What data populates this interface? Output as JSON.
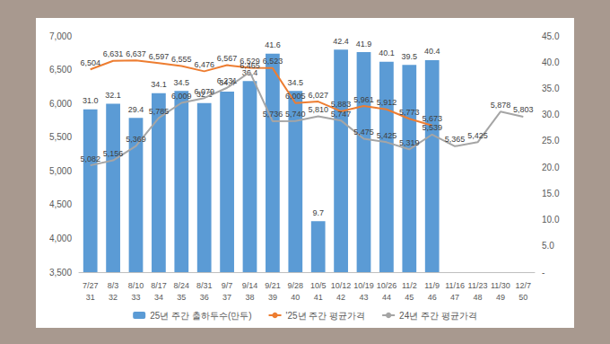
{
  "chart_data": {
    "type": "bar",
    "categories": [
      "7/27\n31",
      "8/3\n32",
      "8/10\n33",
      "8/17\n34",
      "8/24\n35",
      "8/31\n36",
      "9/7\n37",
      "9/14\n38",
      "9/21\n39",
      "9/28\n40",
      "10/5\n41",
      "10/12\n42",
      "10/19\n43",
      "10/26\n44",
      "11/2\n45",
      "11/9\n46",
      "11/16\n47",
      "11/23\n48",
      "11/30\n49",
      "12/7\n50"
    ],
    "series": [
      {
        "name": "25년 주간 출하두수(만두)",
        "type": "bar",
        "axis": "y2",
        "color": "#5b9bd5",
        "values": [
          31.0,
          32.1,
          29.4,
          34.1,
          34.5,
          32.2,
          34.4,
          36.4,
          41.6,
          34.5,
          9.7,
          42.4,
          41.9,
          40.1,
          39.5,
          40.4,
          null,
          null,
          null,
          null
        ],
        "value_labels": [
          "31.0",
          "32.1",
          "29.4",
          "34.1",
          "34.5",
          "32.2",
          "34.4",
          "36.4",
          "41.6",
          "34.5",
          "9.7",
          "42.4",
          "41.9",
          "40.1",
          "39.5",
          "40.4",
          null,
          null,
          null,
          null
        ]
      },
      {
        "name": "'25년 주간 평균가격",
        "type": "line",
        "color": "#ed7d31",
        "marker": "none",
        "line_style": "solid",
        "values": [
          6504,
          6631,
          6637,
          6597,
          6555,
          6476,
          6567,
          6529,
          6523,
          6005,
          6027,
          5883,
          5961,
          5912,
          5773,
          5673,
          null,
          null,
          null,
          null
        ],
        "value_labels": [
          "6,504",
          "6,631",
          "6,637",
          "6,597",
          "6,555",
          "6,476",
          "6,567",
          "6,529",
          "6,523",
          "6,005",
          "6,027",
          "5,883",
          "5,961",
          "5,912",
          "5,773",
          "5,673",
          null,
          null,
          null,
          null
        ]
      },
      {
        "name": "24년 주간 평균가격",
        "type": "line",
        "color": "#a5a5a5",
        "marker": "none",
        "line_style": "solid",
        "values": [
          5082,
          5156,
          5369,
          5785,
          6009,
          6079,
          6231,
          6465,
          5736,
          5740,
          5810,
          5747,
          5475,
          5425,
          5319,
          5539,
          5365,
          5425,
          5878,
          5803
        ],
        "value_labels": [
          "5,082",
          "5,156",
          "5,369",
          "5,785",
          "6,009",
          "6,079",
          "6,231",
          "6,465",
          "5,736",
          "5,740",
          "5,810",
          "5,747",
          "5,475",
          "5,425",
          "5,319",
          "5,539",
          "5,365",
          "5,425",
          "5,878",
          "5,803"
        ]
      }
    ],
    "ylim": [
      3500,
      7000
    ],
    "yticks": [
      {
        "value": 3500,
        "label": "3,500"
      },
      {
        "value": 4000,
        "label": "4,000"
      },
      {
        "value": 4500,
        "label": "4,500"
      },
      {
        "value": 5000,
        "label": "5,000"
      },
      {
        "value": 5500,
        "label": "5,500"
      },
      {
        "value": 6000,
        "label": "6,000"
      },
      {
        "value": 6500,
        "label": "6,500"
      },
      {
        "value": 7000,
        "label": "7,000"
      }
    ],
    "y2lim": [
      0,
      45
    ],
    "y2ticks": [
      {
        "value": 0,
        "label": "-"
      },
      {
        "value": 5,
        "label": "5.0"
      },
      {
        "value": 10,
        "label": "10.0"
      },
      {
        "value": 15,
        "label": "15.0"
      },
      {
        "value": 20,
        "label": "20.0"
      },
      {
        "value": 25,
        "label": "25.0"
      },
      {
        "value": 30,
        "label": "30.0"
      },
      {
        "value": 35,
        "label": "35.0"
      },
      {
        "value": 40,
        "label": "40.0"
      },
      {
        "value": 45,
        "label": "45.0"
      }
    ],
    "data_labels": true,
    "legend": "bottom",
    "grid": false
  }
}
